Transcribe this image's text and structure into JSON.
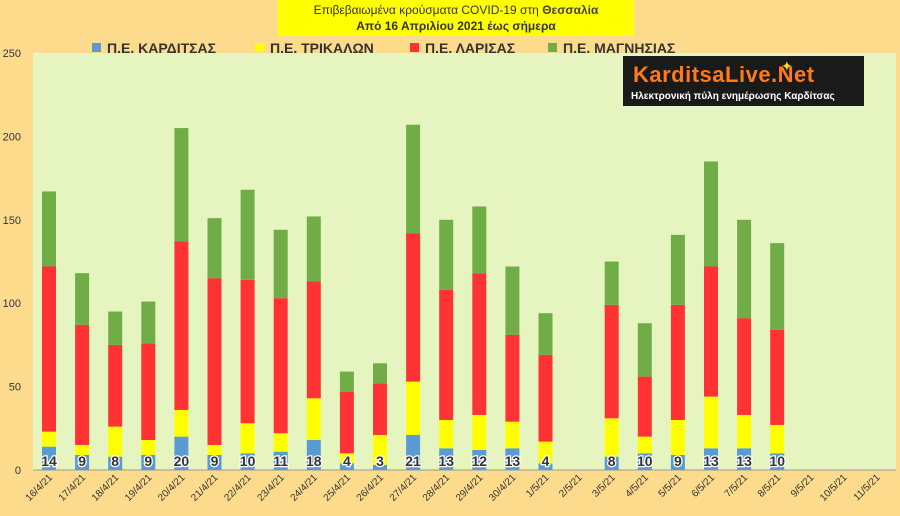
{
  "title": {
    "line1_prefix": "Επιβεβαιωμένα κρούσματα COVID-19 στη ",
    "line1_region": "Θεσσαλία",
    "line2": "Από 16 Απριλίου 2021 έως σήμερα"
  },
  "logo": {
    "name": "KarditsaLive.Net",
    "tagline": "Ηλεκτρονική πύλη ενημέρωσης Καρδίτσας",
    "icon": "star-icon"
  },
  "colors": {
    "background": "#fddb8c",
    "plot_area": "#e6f5c0",
    "karditsa": "#5b9bd5",
    "trikala": "#ffff00",
    "larisa": "#ff3333",
    "magnisia": "#70ad47",
    "label": "#333333",
    "data_label_white": "#ffffff"
  },
  "chart_data": {
    "type": "bar",
    "stacked": true,
    "categories": [
      "16/4/21",
      "17/4/21",
      "18/4/21",
      "19/4/21",
      "20/4/21",
      "21/4/21",
      "22/4/21",
      "23/4/21",
      "24/4/21",
      "25/4/21",
      "26/4/21",
      "27/4/21",
      "28/4/21",
      "29/4/21",
      "30/4/21",
      "1/5/21",
      "2/5/21",
      "3/5/21",
      "4/5/21",
      "5/5/21",
      "6/5/21",
      "7/5/21",
      "8/5/21",
      "9/5/21",
      "10/5/21",
      "11/5/21"
    ],
    "series": [
      {
        "name": "Π.Ε. ΚΑΡΔΙΤΣΑΣ",
        "color": "#5b9bd5",
        "values": [
          14,
          9,
          8,
          9,
          20,
          9,
          10,
          11,
          18,
          4,
          3,
          21,
          13,
          12,
          13,
          4,
          null,
          8,
          10,
          9,
          13,
          13,
          10,
          null,
          null,
          null
        ]
      },
      {
        "name": "Π.Ε. ΤΡΙΚΑΛΩΝ",
        "color": "#ffff00",
        "values": [
          9,
          6,
          18,
          9,
          16,
          6,
          18,
          11,
          25,
          6,
          18,
          32,
          17,
          21,
          16,
          13,
          null,
          23,
          10,
          21,
          31,
          20,
          17,
          null,
          null,
          null
        ]
      },
      {
        "name": "Π.Ε. ΛΑΡΙΣΑΣ",
        "color": "#ff3333",
        "values": [
          99,
          72,
          49,
          58,
          101,
          100,
          86,
          81,
          70,
          37,
          31,
          89,
          78,
          85,
          52,
          52,
          null,
          68,
          36,
          69,
          78,
          58,
          57,
          null,
          null,
          null
        ]
      },
      {
        "name": "Π.Ε. ΜΑΓΝΗΣΙΑΣ",
        "color": "#70ad47",
        "values": [
          45,
          31,
          20,
          25,
          68,
          36,
          54,
          41,
          39,
          12,
          12,
          65,
          42,
          40,
          41,
          25,
          null,
          26,
          32,
          42,
          63,
          59,
          52,
          null,
          null,
          null
        ]
      }
    ],
    "data_labels_series": "Π.Ε. ΚΑΡΔΙΤΣΑΣ",
    "ylim": [
      0,
      250
    ],
    "yticks": [
      0,
      50,
      100,
      150,
      200,
      250
    ],
    "grid": false,
    "legend": "top"
  }
}
